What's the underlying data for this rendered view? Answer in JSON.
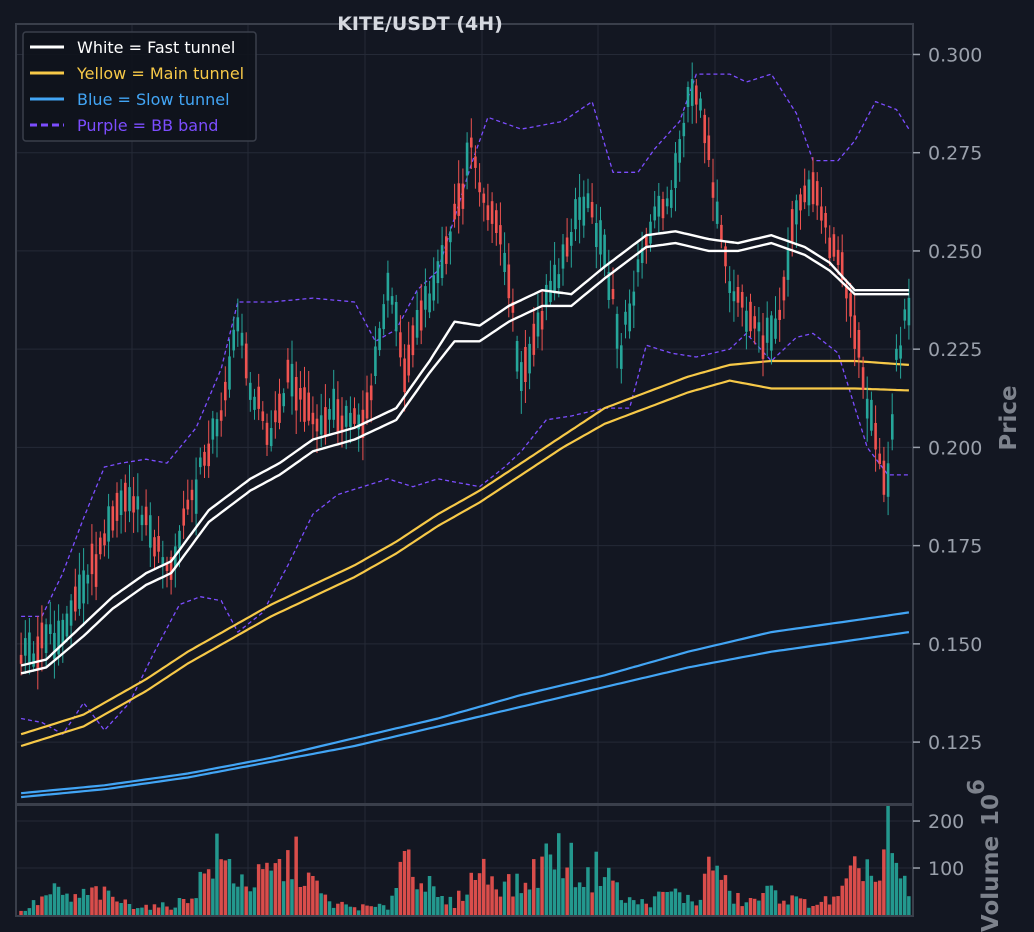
{
  "chart_data": {
    "type": "candlestick",
    "title": "KITE/USDT (4H)",
    "ylabel": "Price",
    "volume_label": "Volume",
    "volume_multiplier": "10",
    "volume_multiplier_exp": "6",
    "ylim": [
      0.1095,
      0.3075
    ],
    "yticks": [
      "0.125",
      "0.150",
      "0.175",
      "0.200",
      "0.225",
      "0.250",
      "0.275",
      "0.300"
    ],
    "vol_ylim": [
      0,
      232
    ],
    "vol_ticks": [
      "100",
      "200"
    ],
    "colors": {
      "background": "#131722",
      "grid": "#252a37",
      "up": "#26a69a",
      "down": "#ef5350",
      "fast": "#ffffff",
      "main": "#f7c948",
      "slow": "#42a5f5",
      "bb": "#7c4dff"
    },
    "legend": {
      "position": "top-left",
      "entries": [
        {
          "label": "White = Fast tunnel",
          "color": "#ffffff",
          "style": "solid"
        },
        {
          "label": "Yellow = Main tunnel",
          "color": "#f7c948",
          "style": "solid"
        },
        {
          "label": "Blue = Slow tunnel",
          "color": "#42a5f5",
          "style": "solid"
        },
        {
          "label": "Purple = BB band",
          "color": "#7c4dff",
          "style": "dashed"
        }
      ]
    },
    "price_anchors": [
      [
        0,
        0.146
      ],
      [
        8,
        0.152
      ],
      [
        14,
        0.163
      ],
      [
        20,
        0.175
      ],
      [
        25,
        0.188
      ],
      [
        30,
        0.182
      ],
      [
        35,
        0.168
      ],
      [
        38,
        0.176
      ],
      [
        42,
        0.19
      ],
      [
        48,
        0.21
      ],
      [
        52,
        0.233
      ],
      [
        56,
        0.212
      ],
      [
        60,
        0.203
      ],
      [
        64,
        0.218
      ],
      [
        68,
        0.212
      ],
      [
        72,
        0.207
      ],
      [
        76,
        0.21
      ],
      [
        80,
        0.205
      ],
      [
        84,
        0.212
      ],
      [
        88,
        0.242
      ],
      [
        92,
        0.22
      ],
      [
        96,
        0.235
      ],
      [
        100,
        0.242
      ],
      [
        105,
        0.262
      ],
      [
        108,
        0.275
      ],
      [
        112,
        0.262
      ],
      [
        116,
        0.248
      ],
      [
        120,
        0.218
      ],
      [
        124,
        0.232
      ],
      [
        128,
        0.24
      ],
      [
        132,
        0.255
      ],
      [
        136,
        0.265
      ],
      [
        140,
        0.248
      ],
      [
        144,
        0.225
      ],
      [
        148,
        0.245
      ],
      [
        152,
        0.258
      ],
      [
        156,
        0.265
      ],
      [
        160,
        0.288
      ],
      [
        163,
        0.29
      ],
      [
        166,
        0.265
      ],
      [
        170,
        0.24
      ],
      [
        174,
        0.233
      ],
      [
        178,
        0.228
      ],
      [
        182,
        0.232
      ],
      [
        186,
        0.262
      ],
      [
        190,
        0.268
      ],
      [
        193,
        0.255
      ],
      [
        197,
        0.245
      ],
      [
        201,
        0.225
      ],
      [
        205,
        0.2
      ],
      [
        208,
        0.19
      ],
      [
        210,
        0.222
      ],
      [
        213,
        0.236
      ]
    ],
    "fast_tunnel_upper": [
      [
        0,
        0.1445
      ],
      [
        6,
        0.146
      ],
      [
        15,
        0.155
      ],
      [
        22,
        0.162
      ],
      [
        30,
        0.168
      ],
      [
        36,
        0.171
      ],
      [
        45,
        0.184
      ],
      [
        55,
        0.192
      ],
      [
        62,
        0.196
      ],
      [
        70,
        0.202
      ],
      [
        80,
        0.205
      ],
      [
        90,
        0.21
      ],
      [
        98,
        0.222
      ],
      [
        104,
        0.232
      ],
      [
        110,
        0.231
      ],
      [
        117,
        0.236
      ],
      [
        125,
        0.24
      ],
      [
        132,
        0.239
      ],
      [
        140,
        0.246
      ],
      [
        150,
        0.254
      ],
      [
        157,
        0.255
      ],
      [
        165,
        0.253
      ],
      [
        172,
        0.252
      ],
      [
        180,
        0.254
      ],
      [
        188,
        0.251
      ],
      [
        194,
        0.247
      ],
      [
        200,
        0.24
      ],
      [
        213,
        0.24
      ]
    ],
    "fast_tunnel_lower": [
      [
        0,
        0.1425
      ],
      [
        6,
        0.144
      ],
      [
        15,
        0.152
      ],
      [
        22,
        0.159
      ],
      [
        30,
        0.165
      ],
      [
        36,
        0.168
      ],
      [
        45,
        0.181
      ],
      [
        55,
        0.189
      ],
      [
        62,
        0.193
      ],
      [
        70,
        0.199
      ],
      [
        80,
        0.202
      ],
      [
        90,
        0.207
      ],
      [
        98,
        0.219
      ],
      [
        104,
        0.227
      ],
      [
        110,
        0.227
      ],
      [
        117,
        0.232
      ],
      [
        125,
        0.236
      ],
      [
        132,
        0.236
      ],
      [
        140,
        0.243
      ],
      [
        150,
        0.251
      ],
      [
        157,
        0.252
      ],
      [
        165,
        0.25
      ],
      [
        172,
        0.25
      ],
      [
        180,
        0.252
      ],
      [
        188,
        0.249
      ],
      [
        194,
        0.245
      ],
      [
        200,
        0.239
      ],
      [
        213,
        0.239
      ]
    ],
    "main_tunnel_upper": [
      [
        0,
        0.127
      ],
      [
        15,
        0.132
      ],
      [
        30,
        0.141
      ],
      [
        40,
        0.148
      ],
      [
        50,
        0.154
      ],
      [
        60,
        0.16
      ],
      [
        70,
        0.165
      ],
      [
        80,
        0.17
      ],
      [
        90,
        0.176
      ],
      [
        100,
        0.183
      ],
      [
        110,
        0.189
      ],
      [
        120,
        0.196
      ],
      [
        130,
        0.203
      ],
      [
        140,
        0.21
      ],
      [
        150,
        0.214
      ],
      [
        160,
        0.218
      ],
      [
        170,
        0.221
      ],
      [
        180,
        0.222
      ],
      [
        190,
        0.222
      ],
      [
        200,
        0.222
      ],
      [
        213,
        0.221
      ]
    ],
    "main_tunnel_lower": [
      [
        0,
        0.124
      ],
      [
        15,
        0.129
      ],
      [
        30,
        0.138
      ],
      [
        40,
        0.145
      ],
      [
        50,
        0.151
      ],
      [
        60,
        0.157
      ],
      [
        70,
        0.162
      ],
      [
        80,
        0.167
      ],
      [
        90,
        0.173
      ],
      [
        100,
        0.18
      ],
      [
        110,
        0.186
      ],
      [
        120,
        0.193
      ],
      [
        130,
        0.2
      ],
      [
        140,
        0.206
      ],
      [
        150,
        0.21
      ],
      [
        160,
        0.214
      ],
      [
        170,
        0.217
      ],
      [
        180,
        0.215
      ],
      [
        190,
        0.215
      ],
      [
        200,
        0.215
      ],
      [
        213,
        0.2145
      ]
    ],
    "slow_tunnel_upper": [
      [
        0,
        0.112
      ],
      [
        20,
        0.114
      ],
      [
        40,
        0.117
      ],
      [
        60,
        0.121
      ],
      [
        80,
        0.126
      ],
      [
        100,
        0.131
      ],
      [
        120,
        0.137
      ],
      [
        140,
        0.142
      ],
      [
        160,
        0.148
      ],
      [
        180,
        0.153
      ],
      [
        200,
        0.156
      ],
      [
        213,
        0.158
      ]
    ],
    "slow_tunnel_lower": [
      [
        0,
        0.111
      ],
      [
        20,
        0.113
      ],
      [
        40,
        0.116
      ],
      [
        60,
        0.12
      ],
      [
        80,
        0.124
      ],
      [
        100,
        0.129
      ],
      [
        120,
        0.134
      ],
      [
        140,
        0.139
      ],
      [
        160,
        0.144
      ],
      [
        180,
        0.148
      ],
      [
        200,
        0.151
      ],
      [
        213,
        0.153
      ]
    ],
    "bb_upper": [
      [
        0,
        0.157
      ],
      [
        5,
        0.157
      ],
      [
        10,
        0.168
      ],
      [
        15,
        0.182
      ],
      [
        20,
        0.195
      ],
      [
        24,
        0.196
      ],
      [
        30,
        0.197
      ],
      [
        35,
        0.196
      ],
      [
        42,
        0.205
      ],
      [
        48,
        0.22
      ],
      [
        52,
        0.237
      ],
      [
        60,
        0.237
      ],
      [
        70,
        0.238
      ],
      [
        80,
        0.237
      ],
      [
        85,
        0.227
      ],
      [
        90,
        0.23
      ],
      [
        95,
        0.24
      ],
      [
        100,
        0.245
      ],
      [
        108,
        0.272
      ],
      [
        112,
        0.284
      ],
      [
        120,
        0.281
      ],
      [
        130,
        0.283
      ],
      [
        137,
        0.288
      ],
      [
        142,
        0.27
      ],
      [
        148,
        0.27
      ],
      [
        152,
        0.276
      ],
      [
        158,
        0.283
      ],
      [
        162,
        0.295
      ],
      [
        170,
        0.295
      ],
      [
        174,
        0.293
      ],
      [
        180,
        0.295
      ],
      [
        186,
        0.285
      ],
      [
        190,
        0.273
      ],
      [
        196,
        0.273
      ],
      [
        200,
        0.278
      ],
      [
        205,
        0.288
      ],
      [
        210,
        0.286
      ],
      [
        213,
        0.281
      ]
    ],
    "bb_lower": [
      [
        0,
        0.131
      ],
      [
        5,
        0.13
      ],
      [
        10,
        0.127
      ],
      [
        15,
        0.135
      ],
      [
        20,
        0.128
      ],
      [
        26,
        0.135
      ],
      [
        32,
        0.148
      ],
      [
        38,
        0.16
      ],
      [
        43,
        0.162
      ],
      [
        48,
        0.161
      ],
      [
        52,
        0.153
      ],
      [
        58,
        0.158
      ],
      [
        64,
        0.17
      ],
      [
        70,
        0.183
      ],
      [
        76,
        0.188
      ],
      [
        82,
        0.19
      ],
      [
        88,
        0.192
      ],
      [
        94,
        0.19
      ],
      [
        100,
        0.192
      ],
      [
        110,
        0.19
      ],
      [
        116,
        0.195
      ],
      [
        120,
        0.199
      ],
      [
        126,
        0.207
      ],
      [
        132,
        0.208
      ],
      [
        140,
        0.21
      ],
      [
        146,
        0.21
      ],
      [
        150,
        0.226
      ],
      [
        156,
        0.224
      ],
      [
        162,
        0.223
      ],
      [
        170,
        0.225
      ],
      [
        174,
        0.229
      ],
      [
        180,
        0.222
      ],
      [
        186,
        0.228
      ],
      [
        190,
        0.229
      ],
      [
        196,
        0.224
      ],
      [
        203,
        0.2
      ],
      [
        208,
        0.193
      ],
      [
        213,
        0.193
      ]
    ],
    "volume_peaks": [
      [
        0,
        8
      ],
      [
        8,
        60
      ],
      [
        12,
        40
      ],
      [
        18,
        60
      ],
      [
        25,
        30
      ],
      [
        32,
        20
      ],
      [
        36,
        25
      ],
      [
        40,
        40
      ],
      [
        47,
        150
      ],
      [
        54,
        80
      ],
      [
        58,
        95
      ],
      [
        66,
        140
      ],
      [
        70,
        80
      ],
      [
        74,
        30
      ],
      [
        80,
        20
      ],
      [
        88,
        20
      ],
      [
        92,
        170
      ],
      [
        96,
        100
      ],
      [
        100,
        40
      ],
      [
        104,
        30
      ],
      [
        110,
        120
      ],
      [
        114,
        90
      ],
      [
        120,
        70
      ],
      [
        124,
        120
      ],
      [
        128,
        170
      ],
      [
        132,
        130
      ],
      [
        136,
        90
      ],
      [
        140,
        140
      ],
      [
        144,
        40
      ],
      [
        150,
        30
      ],
      [
        156,
        60
      ],
      [
        162,
        30
      ],
      [
        166,
        145
      ],
      [
        170,
        50
      ],
      [
        174,
        30
      ],
      [
        180,
        60
      ],
      [
        186,
        35
      ],
      [
        190,
        30
      ],
      [
        196,
        40
      ],
      [
        202,
        140
      ],
      [
        206,
        80
      ],
      [
        208,
        230
      ],
      [
        210,
        100
      ],
      [
        213,
        60
      ]
    ]
  }
}
